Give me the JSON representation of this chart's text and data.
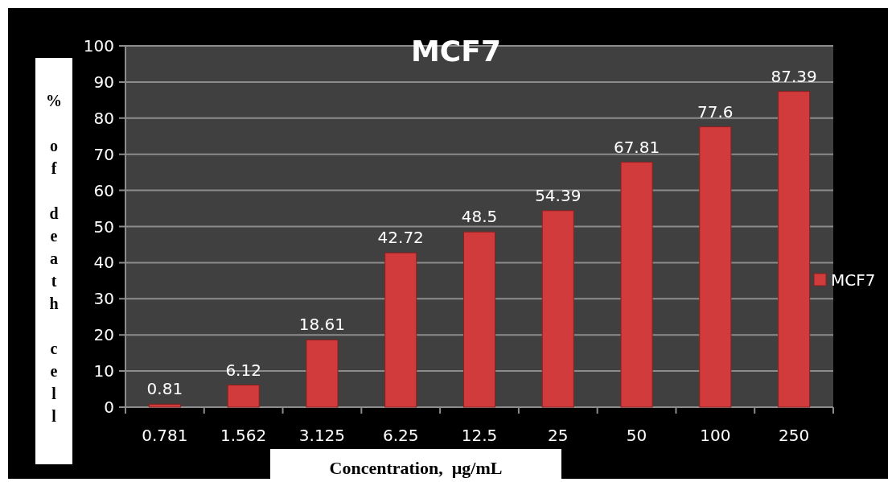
{
  "chart_data": {
    "type": "bar",
    "title": "MCF7",
    "xlabel": "Concentration,  µg/mL",
    "ylabel": "% of death cell",
    "categories": [
      "0.781",
      "1.562",
      "3.125",
      "6.25",
      "12.5",
      "25",
      "50",
      "100",
      "250"
    ],
    "series": [
      {
        "name": "MCF7",
        "color": "#d13b3b",
        "values": [
          0.81,
          6.12,
          18.61,
          42.72,
          48.5,
          54.39,
          67.81,
          77.6,
          87.39
        ]
      }
    ],
    "ylim": [
      0,
      100
    ],
    "yticks": [
      0,
      10,
      20,
      30,
      40,
      50,
      60,
      70,
      80,
      90,
      100
    ],
    "grid": "y",
    "legend": "right",
    "data_labels": true
  }
}
